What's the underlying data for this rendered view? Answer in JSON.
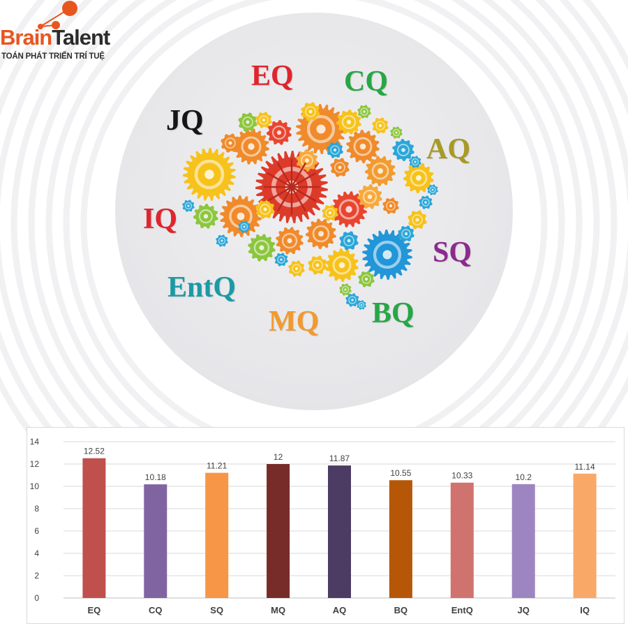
{
  "logo": {
    "brand_part1": "Brain",
    "brand_part2": "Talent",
    "tagline": "TOÁN PHÁT TRIỂN TRÍ TUỆ",
    "colors": {
      "brand_orange": "#e8561f",
      "brand_dark": "#2c2c2c"
    }
  },
  "illustration": {
    "labels": [
      {
        "id": "eq",
        "text": "EQ",
        "color": "#e0252d"
      },
      {
        "id": "cq",
        "text": "CQ",
        "color": "#27a745"
      },
      {
        "id": "jq",
        "text": "JQ",
        "color": "#151515"
      },
      {
        "id": "aq",
        "text": "AQ",
        "color": "#a89a24"
      },
      {
        "id": "iq",
        "text": "IQ",
        "color": "#e0252d"
      },
      {
        "id": "sq",
        "text": "SQ",
        "color": "#8c2a8e"
      },
      {
        "id": "entq",
        "text": "EntQ",
        "color": "#1a9aa5"
      },
      {
        "id": "mq",
        "text": "MQ",
        "color": "#f29a2e"
      },
      {
        "id": "bq",
        "text": "BQ",
        "color": "#27a745"
      }
    ]
  },
  "chart_data": {
    "type": "bar",
    "categories": [
      "EQ",
      "CQ",
      "SQ",
      "MQ",
      "AQ",
      "BQ",
      "EntQ",
      "JQ",
      "IQ"
    ],
    "values": [
      12.52,
      10.18,
      11.21,
      12,
      11.87,
      10.55,
      10.33,
      10.2,
      11.14
    ],
    "value_labels": [
      "12.52",
      "10.18",
      "11.21",
      "12",
      "11.87",
      "10.55",
      "10.33",
      "10.2",
      "11.14"
    ],
    "bar_colors": [
      "#c0504d",
      "#8064a2",
      "#f79646",
      "#772c2a",
      "#4c3b62",
      "#b65708",
      "#d0736f",
      "#9c85c0",
      "#f9a868"
    ],
    "title": "",
    "xlabel": "",
    "ylabel": "",
    "ylim": [
      0,
      14
    ],
    "yticks": [
      "0",
      "2",
      "4",
      "6",
      "8",
      "10",
      "12",
      "14"
    ],
    "grid": true,
    "legend": "none"
  }
}
